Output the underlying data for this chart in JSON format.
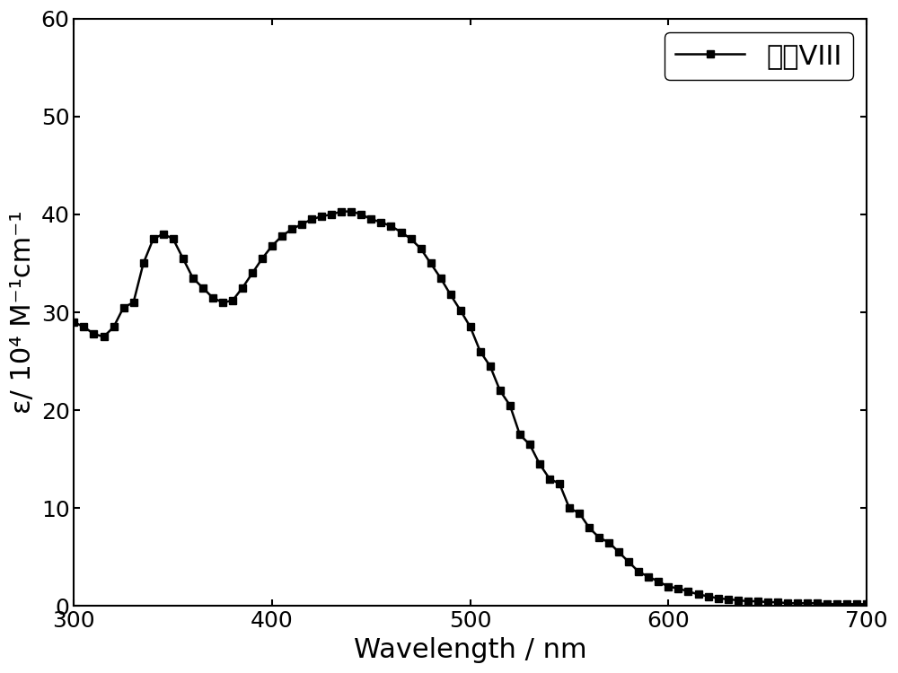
{
  "wavelength": [
    300,
    305,
    310,
    315,
    320,
    325,
    330,
    335,
    340,
    345,
    350,
    355,
    360,
    365,
    370,
    375,
    380,
    385,
    390,
    395,
    400,
    405,
    410,
    415,
    420,
    425,
    430,
    435,
    440,
    445,
    450,
    455,
    460,
    465,
    470,
    475,
    480,
    485,
    490,
    495,
    500,
    505,
    510,
    515,
    520,
    525,
    530,
    535,
    540,
    545,
    550,
    555,
    560,
    565,
    570,
    575,
    580,
    585,
    590,
    595,
    600,
    605,
    610,
    615,
    620,
    625,
    630,
    635,
    640,
    645,
    650,
    655,
    660,
    665,
    670,
    675,
    680,
    685,
    690,
    695,
    700
  ],
  "epsilon": [
    29.0,
    28.5,
    27.8,
    27.5,
    28.5,
    30.5,
    31.0,
    35.0,
    37.5,
    38.0,
    37.5,
    35.5,
    33.5,
    32.5,
    31.5,
    31.0,
    31.2,
    32.5,
    34.0,
    35.5,
    36.8,
    37.8,
    38.5,
    39.0,
    39.5,
    39.8,
    40.0,
    40.3,
    40.3,
    40.0,
    39.5,
    39.2,
    38.8,
    38.2,
    37.5,
    36.5,
    35.0,
    33.5,
    31.8,
    30.2,
    28.5,
    26.0,
    24.5,
    22.0,
    20.5,
    17.5,
    16.5,
    14.5,
    13.0,
    12.5,
    10.0,
    9.5,
    8.0,
    7.0,
    6.5,
    5.5,
    4.5,
    3.5,
    3.0,
    2.5,
    2.0,
    1.8,
    1.5,
    1.2,
    1.0,
    0.8,
    0.7,
    0.6,
    0.5,
    0.5,
    0.4,
    0.4,
    0.3,
    0.3,
    0.3,
    0.3,
    0.2,
    0.2,
    0.2,
    0.2,
    0.2
  ],
  "xlim": [
    300,
    700
  ],
  "ylim": [
    0,
    60
  ],
  "xticks": [
    300,
    400,
    500,
    600,
    700
  ],
  "yticks": [
    0,
    10,
    20,
    30,
    40,
    50,
    60
  ],
  "xlabel": "Wavelength / nm",
  "ylabel": "ε/ 10⁴ M⁻¹cm⁻¹",
  "legend_label": "染料VIII",
  "line_color": "#000000",
  "marker": "s",
  "markersize": 6,
  "linewidth": 1.8,
  "label_fontsize": 22,
  "tick_fontsize": 18,
  "legend_fontsize": 22,
  "background_color": "#ffffff"
}
